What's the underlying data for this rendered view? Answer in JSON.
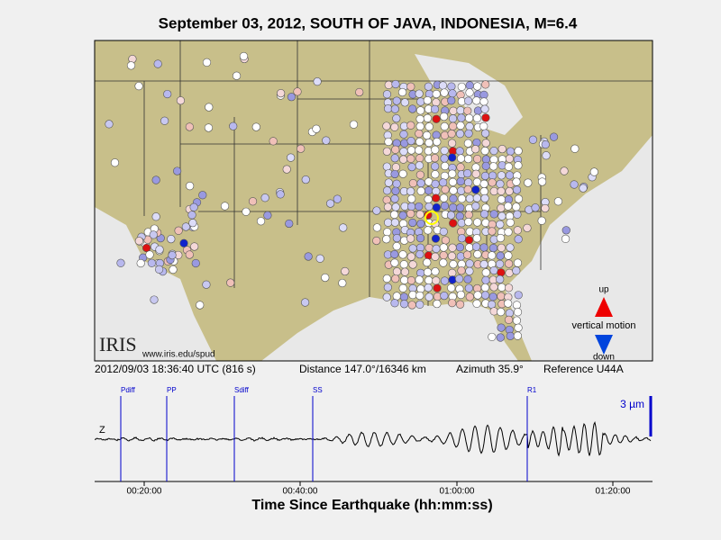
{
  "title": "September 03, 2012, SOUTH OF JAVA, INDONESIA, M=6.4",
  "map": {
    "logo": "IRIS",
    "url": "www.iris.edu/spud",
    "legend": {
      "up": "up",
      "label": "vertical motion",
      "down": "down"
    }
  },
  "info": {
    "time": "2012/09/03 18:36:40 UTC (816 s)",
    "distance": "Distance 147.0°/16346 km",
    "azimuth": "Azimuth  35.9°",
    "reference": "Reference U44A"
  },
  "seismogram": {
    "channel": "Z",
    "scale": "3 µm",
    "phases": [
      "Pdiff",
      "PP",
      "Sdiff",
      "SS",
      "R1"
    ],
    "ticks": [
      "00:20:00",
      "00:40:00",
      "01:00:00",
      "01:20:00"
    ],
    "axis_label": "Time Since Earthquake (hh:mm:ss)"
  }
}
